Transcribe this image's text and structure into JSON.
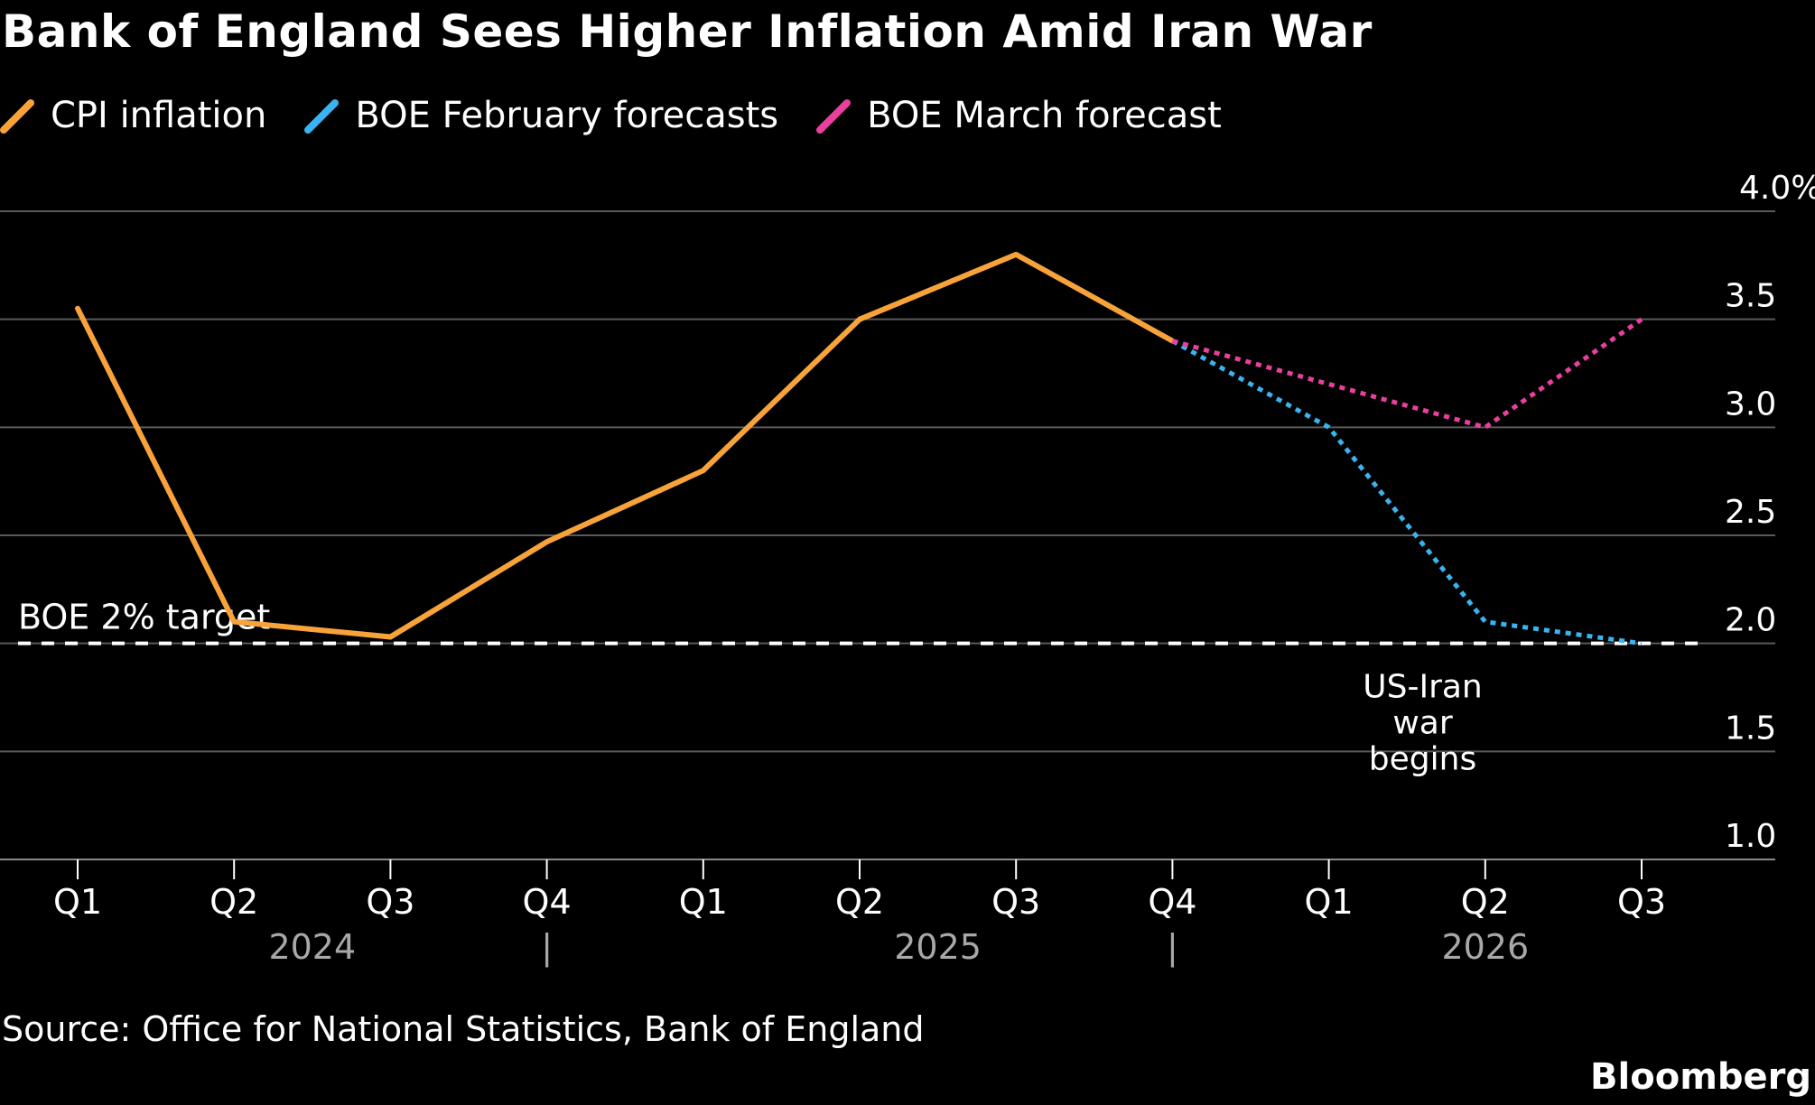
{
  "chart_data": {
    "type": "line",
    "title": "Bank of England Sees Higher Inflation Amid Iran War",
    "categories": [
      "Q1",
      "Q2",
      "Q3",
      "Q4",
      "Q1",
      "Q2",
      "Q3",
      "Q4",
      "Q1",
      "Q2",
      "Q3"
    ],
    "year_groups": [
      {
        "label": "2024",
        "start": 0,
        "end": 3
      },
      {
        "label": "2025",
        "start": 4,
        "end": 7
      },
      {
        "label": "2026",
        "start": 8,
        "end": 10
      }
    ],
    "year_separator_symbol": "|",
    "series": [
      {
        "name": "CPI inflation",
        "color": "#f7a33a",
        "style": "solid",
        "points": [
          [
            0,
            3.55
          ],
          [
            1,
            2.1
          ],
          [
            2,
            2.03
          ],
          [
            3,
            2.47
          ],
          [
            4,
            2.8
          ],
          [
            5,
            3.5
          ],
          [
            6,
            3.8
          ],
          [
            7,
            3.4
          ]
        ]
      },
      {
        "name": "BOE February forecasts",
        "color": "#3ab4f0",
        "style": "dotted",
        "points": [
          [
            7,
            3.4
          ],
          [
            8,
            3.0
          ],
          [
            9,
            2.1
          ],
          [
            10,
            2.0
          ]
        ]
      },
      {
        "name": "BOE March forecast",
        "color": "#e8409c",
        "style": "dotted",
        "points": [
          [
            7,
            3.4
          ],
          [
            8,
            3.2
          ],
          [
            9,
            3.0
          ],
          [
            10,
            3.5
          ]
        ]
      }
    ],
    "ylim": [
      1.0,
      4.0
    ],
    "yticks": [
      1.0,
      1.5,
      2.0,
      2.5,
      3.0,
      3.5,
      4.0
    ],
    "ytick_labels": [
      "1.0",
      "1.5",
      "2.0",
      "2.5",
      "3.0",
      "3.5",
      "4.0%"
    ],
    "y_axis_side": "right",
    "grid": true,
    "legend_position": "top-left",
    "reference_line": {
      "label": "BOE 2% target",
      "value": 2.0,
      "style": "dashed",
      "color": "#ffffff"
    },
    "annotations": [
      {
        "lines": [
          "US-Iran",
          "war",
          "begins"
        ],
        "x": 8.6,
        "y": 1.55
      }
    ]
  },
  "source": "Source: Office for National Statistics, Bank of England",
  "brand": "Bloomberg"
}
